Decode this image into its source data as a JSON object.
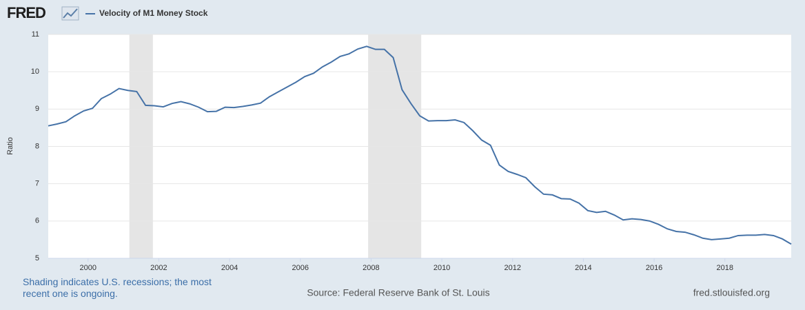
{
  "chart_data": {
    "type": "line",
    "logo": "FRED",
    "y_label": "Ratio",
    "note": "Shading indicates U.S. recessions; the most recent one is ongoing.",
    "source": "Source: Federal Reserve Bank of St. Louis",
    "site": "fred.stlouisfed.org",
    "x": [
      1998.875,
      1999.125,
      1999.375,
      1999.625,
      1999.875,
      2000.125,
      2000.375,
      2000.625,
      2000.875,
      2001.125,
      2001.375,
      2001.625,
      2001.875,
      2002.125,
      2002.375,
      2002.625,
      2002.875,
      2003.125,
      2003.375,
      2003.625,
      2003.875,
      2004.125,
      2004.375,
      2004.625,
      2004.875,
      2005.125,
      2005.375,
      2005.625,
      2005.875,
      2006.125,
      2006.375,
      2006.625,
      2006.875,
      2007.125,
      2007.375,
      2007.625,
      2007.875,
      2008.125,
      2008.375,
      2008.625,
      2008.875,
      2009.125,
      2009.375,
      2009.625,
      2009.875,
      2010.125,
      2010.375,
      2010.625,
      2010.875,
      2011.125,
      2011.375,
      2011.625,
      2011.875,
      2012.125,
      2012.375,
      2012.625,
      2012.875,
      2013.125,
      2013.375,
      2013.625,
      2013.875,
      2014.125,
      2014.375,
      2014.625,
      2014.875,
      2015.125,
      2015.375,
      2015.625,
      2015.875,
      2016.125,
      2016.375,
      2016.625,
      2016.875,
      2017.125,
      2017.375,
      2017.625,
      2017.875,
      2018.125,
      2018.375,
      2018.625,
      2018.875,
      2019.125,
      2019.375,
      2019.625,
      2019.875
    ],
    "series": [
      {
        "name": "Velocity of M1 Money Stock",
        "color": "#4572a7",
        "values": [
          8.55,
          8.6,
          8.66,
          8.82,
          8.95,
          9.02,
          9.28,
          9.4,
          9.55,
          9.5,
          9.47,
          9.1,
          9.09,
          9.06,
          9.15,
          9.2,
          9.14,
          9.05,
          8.93,
          8.94,
          9.05,
          9.04,
          9.07,
          9.11,
          9.16,
          9.33,
          9.46,
          9.59,
          9.72,
          9.87,
          9.96,
          10.13,
          10.26,
          10.41,
          10.48,
          10.61,
          10.68,
          10.6,
          10.6,
          10.38,
          9.52,
          9.15,
          8.82,
          8.68,
          8.69,
          8.69,
          8.71,
          8.64,
          8.42,
          8.17,
          8.03,
          7.5,
          7.33,
          7.25,
          7.16,
          6.92,
          6.72,
          6.7,
          6.6,
          6.59,
          6.48,
          6.28,
          6.23,
          6.26,
          6.16,
          6.03,
          6.06,
          6.04,
          6.0,
          5.91,
          5.79,
          5.72,
          5.7,
          5.63,
          5.54,
          5.5,
          5.52,
          5.54,
          5.61,
          5.62,
          5.62,
          5.64,
          5.61,
          5.52,
          5.38
        ]
      }
    ],
    "shading": [
      {
        "start": 2001.167,
        "end": 2001.833
      },
      {
        "start": 2007.917,
        "end": 2009.417
      }
    ],
    "shading_color": "#e5e5e5",
    "xlim": [
      1998.875,
      2019.875
    ],
    "xticks": [
      2000,
      2002,
      2004,
      2006,
      2008,
      2010,
      2012,
      2014,
      2016,
      2018
    ],
    "ylim": [
      5,
      11
    ],
    "yticks": [
      5,
      6,
      7,
      8,
      9,
      10,
      11
    ],
    "grid": true
  }
}
